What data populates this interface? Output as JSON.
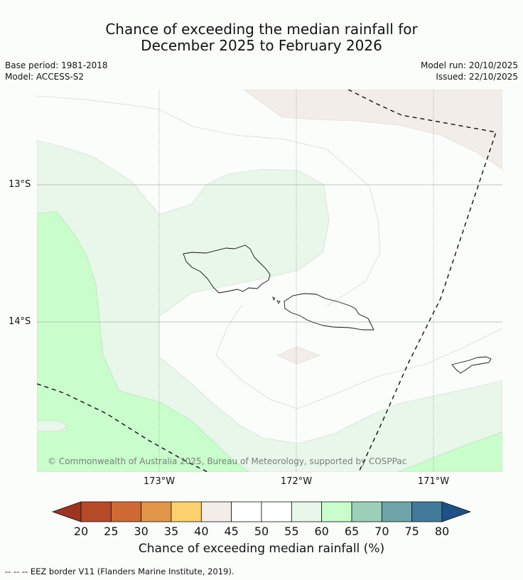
{
  "title": {
    "line1": "Chance of exceeding the median rainfall for",
    "line2": "December 2025 to February 2026"
  },
  "meta": {
    "base_period": "Base period: 1981-2018",
    "model": "Model: ACCESS-S2",
    "model_run": "Model run: 20/10/2025",
    "issued": "Issued: 22/10/2025"
  },
  "map": {
    "lat_labels": [
      "13°S",
      "14°S"
    ],
    "lon_labels": [
      "173°W",
      "172°W",
      "171°W"
    ],
    "copyright": "© Commonwealth of Australia 2025, Bureau of Meteorology, supported by COSPPac"
  },
  "colorbar": {
    "ticks": [
      "20",
      "25",
      "30",
      "35",
      "40",
      "45",
      "50",
      "55",
      "60",
      "65",
      "70",
      "75",
      "80"
    ],
    "colors": [
      "#9e3520",
      "#b74a28",
      "#cf6a35",
      "#e29648",
      "#fdd06e",
      "#f2ede8",
      "#ffffff",
      "#ffffff",
      "#e9f6ea",
      "#c9fdcc",
      "#9ccfb8",
      "#6ea4a8",
      "#437a9c",
      "#1d5288"
    ],
    "title": "Chance of exceeding median rainfall (%)"
  },
  "footnote": "--  --  -- EEZ border V11 (Flanders Marine Institute, 2019)."
}
